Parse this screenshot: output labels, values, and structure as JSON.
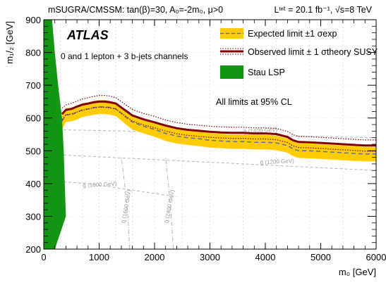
{
  "header": {
    "left": "mSUGRA/CMSSM: tan(β)=30, A₀=-2m₀, μ>0",
    "right": "Lᶦⁿᵗ = 20.1 fb⁻¹, √s=8 TeV"
  },
  "atlas_label": "ATLAS",
  "channel_label": "0 and 1 lepton + 3 b-jets channels",
  "limits_note": "All limits at 95% CL",
  "colors": {
    "band": "#ffcc00",
    "expected": "#5a6fa0",
    "observed": "#800000",
    "stau": "#149614",
    "contour": "#b4b4b4"
  },
  "chart_data": {
    "type": "line",
    "xlabel": "m₀ [GeV]",
    "ylabel": "m₁/₂ [GeV]",
    "xlim": [
      0,
      6000
    ],
    "ylim": [
      200,
      900
    ],
    "xticks": [
      "0",
      "1000",
      "2000",
      "3000",
      "4000",
      "5000",
      "6000"
    ],
    "yticks": [
      "200",
      "300",
      "400",
      "500",
      "600",
      "700",
      "800",
      "900"
    ],
    "legend": {
      "position": "top-right",
      "expected": "Expected limit ±1 σexp",
      "observed": "Observed limit ± 1 σtheory SUSY",
      "stau": "Stau LSP"
    },
    "series": [
      {
        "name": "Expected limit",
        "x": [
          330,
          400,
          500,
          600,
          700,
          800,
          900,
          1000,
          1100,
          1200,
          1300,
          1400,
          1500,
          1600,
          1800,
          2000,
          2200,
          2400,
          2600,
          2800,
          3000,
          3200,
          3400,
          3600,
          3800,
          4000,
          4200,
          4400,
          4500,
          4600,
          4800,
          5000,
          5200,
          5400,
          5600,
          5800,
          6000
        ],
        "y": [
          590,
          610,
          610,
          618,
          625,
          628,
          632,
          634,
          634,
          632,
          628,
          614,
          600,
          588,
          575,
          565,
          553,
          545,
          540,
          537,
          532,
          530,
          528,
          528,
          526,
          526,
          524,
          516,
          506,
          500,
          500,
          498,
          496,
          494,
          492,
          490,
          490
        ]
      },
      {
        "name": "Expected band upper",
        "x": [
          330,
          400,
          500,
          600,
          700,
          800,
          900,
          1000,
          1100,
          1200,
          1300,
          1400,
          1500,
          1600,
          1800,
          2000,
          2200,
          2400,
          2600,
          2800,
          3000,
          3200,
          3400,
          3600,
          3800,
          4000,
          4200,
          4400,
          4500,
          4600,
          4800,
          5000,
          5200,
          5400,
          5600,
          5800,
          6000
        ],
        "y": [
          615,
          630,
          632,
          638,
          645,
          648,
          652,
          655,
          655,
          652,
          648,
          636,
          622,
          610,
          597,
          587,
          576,
          567,
          562,
          558,
          555,
          552,
          550,
          550,
          548,
          548,
          546,
          538,
          529,
          523,
          522,
          520,
          518,
          516,
          514,
          512,
          512
        ]
      },
      {
        "name": "Expected band lower",
        "x": [
          330,
          400,
          500,
          600,
          700,
          800,
          900,
          1000,
          1100,
          1200,
          1300,
          1400,
          1500,
          1600,
          1800,
          2000,
          2200,
          2400,
          2600,
          2800,
          3000,
          3200,
          3400,
          3600,
          3800,
          4000,
          4200,
          4400,
          4500,
          4600,
          4800,
          5000,
          5200,
          5400,
          5600,
          5800,
          6000
        ],
        "y": [
          565,
          588,
          590,
          595,
          603,
          606,
          610,
          612,
          612,
          610,
          606,
          592,
          578,
          565,
          553,
          543,
          530,
          522,
          518,
          514,
          510,
          508,
          506,
          506,
          504,
          504,
          502,
          494,
          484,
          478,
          477,
          475,
          473,
          471,
          469,
          468,
          468
        ]
      },
      {
        "name": "Observed limit",
        "x": [
          330,
          400,
          500,
          600,
          700,
          800,
          900,
          1000,
          1100,
          1200,
          1300,
          1400,
          1500,
          1600,
          1800,
          2000,
          2200,
          2400,
          2600,
          2800,
          3000,
          3200,
          3400,
          3600,
          3800,
          4000,
          4200,
          4400,
          4500,
          4600,
          4800,
          5000,
          5200,
          5400,
          5600,
          5800,
          6000
        ],
        "y": [
          612,
          625,
          628,
          635,
          641,
          644,
          648,
          650,
          650,
          648,
          644,
          632,
          620,
          608,
          596,
          587,
          577,
          569,
          564,
          561,
          558,
          556,
          555,
          555,
          553,
          553,
          551,
          542,
          532,
          527,
          526,
          524,
          522,
          520,
          518,
          516,
          516
        ]
      },
      {
        "name": "Observed +1σ theory",
        "x": [
          330,
          400,
          500,
          600,
          700,
          800,
          900,
          1000,
          1100,
          1200,
          1300,
          1400,
          1500,
          1600,
          1800,
          2000,
          2200,
          2400,
          2600,
          2800,
          3000,
          3200,
          3400,
          3600,
          3800,
          4000,
          4200,
          4400,
          4500,
          4600,
          4800,
          5000,
          5200,
          5400,
          5600,
          5800,
          6000
        ],
        "y": [
          630,
          640,
          645,
          652,
          658,
          662,
          666,
          669,
          669,
          667,
          662,
          650,
          638,
          626,
          614,
          605,
          594,
          586,
          581,
          578,
          575,
          573,
          572,
          572,
          570,
          570,
          568,
          559,
          549,
          544,
          543,
          541,
          539,
          537,
          535,
          533,
          533
        ]
      },
      {
        "name": "Observed -1σ theory",
        "x": [
          330,
          400,
          500,
          600,
          700,
          800,
          900,
          1000,
          1100,
          1200,
          1300,
          1400,
          1500,
          1600,
          1800,
          2000,
          2200,
          2400,
          2600,
          2800,
          3000,
          3200,
          3400,
          3600,
          3800,
          4000,
          4200,
          4400,
          4500,
          4600,
          4800,
          5000,
          5200,
          5400,
          5600,
          5800,
          6000
        ],
        "y": [
          595,
          610,
          612,
          618,
          624,
          627,
          631,
          633,
          633,
          631,
          627,
          615,
          603,
          591,
          579,
          570,
          560,
          552,
          547,
          544,
          541,
          539,
          538,
          538,
          536,
          536,
          534,
          525,
          515,
          510,
          509,
          507,
          505,
          503,
          501,
          499,
          499
        ]
      }
    ],
    "stau_lsp_region": {
      "name": "Stau LSP",
      "x": [
        0,
        0,
        150,
        200,
        260,
        330,
        360,
        380,
        400,
        200
      ],
      "y": [
        200,
        900,
        900,
        800,
        700,
        600,
        500,
        400,
        300,
        200
      ]
    },
    "contours": [
      {
        "label": "g̃ (1000 GeV)",
        "type": "gluino",
        "x": [
          0,
          800,
          1600,
          2400
        ],
        "y": [
          410,
          400,
          380,
          360
        ]
      },
      {
        "label": "g̃ (1200 GeV)",
        "type": "gluino",
        "x": [
          0,
          1200,
          2400,
          3600,
          4800,
          6000
        ],
        "y": [
          490,
          480,
          470,
          460,
          450,
          440
        ]
      },
      {
        "label": "g̃ (1400 GeV)",
        "type": "gluino",
        "x": [
          0,
          1500,
          3000,
          4500,
          6000
        ],
        "y": [
          565,
          560,
          550,
          545,
          540
        ]
      },
      {
        "label": "q̃ (1600 GeV)",
        "type": "squark",
        "x": [
          1550,
          1520,
          1460,
          1400
        ],
        "y": [
          200,
          300,
          400,
          480
        ]
      },
      {
        "label": "q̃ (2400 GeV)",
        "type": "squark",
        "x": [
          2340,
          2300,
          2250,
          2200
        ],
        "y": [
          200,
          300,
          400,
          480
        ]
      }
    ]
  }
}
